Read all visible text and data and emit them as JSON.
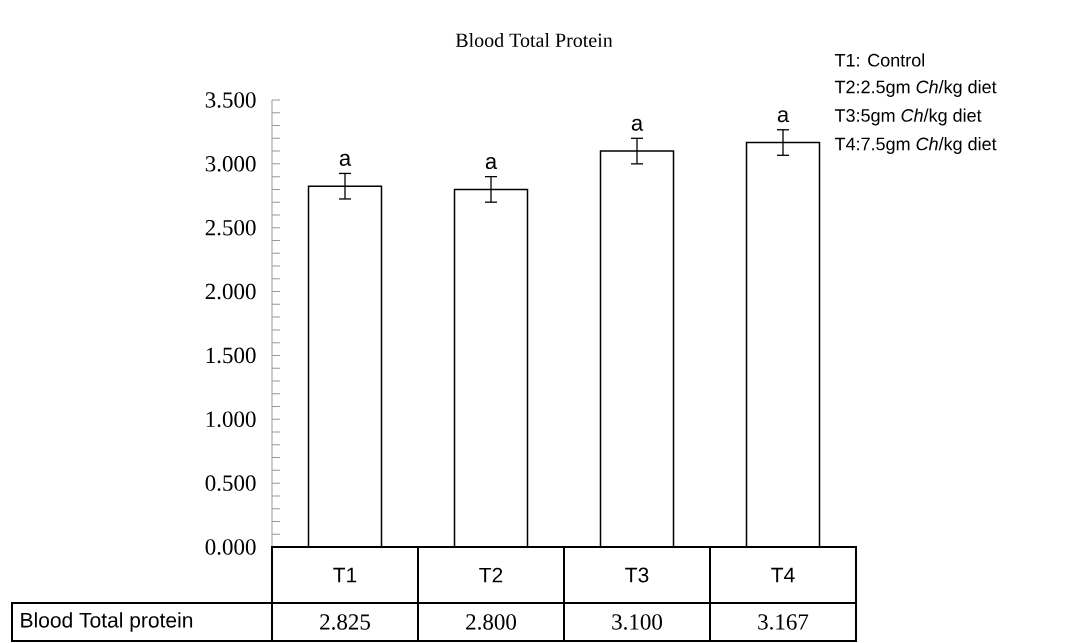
{
  "chart_data": {
    "type": "bar",
    "title": "Blood Total Protein",
    "categories": [
      "T1",
      "T2",
      "T3",
      "T4"
    ],
    "series": [
      {
        "name": "Blood Total protein",
        "color": "#ffffff",
        "values": [
          2.825,
          2.8,
          3.1,
          3.167
        ],
        "errors": [
          0.1,
          0.1,
          0.1,
          0.1
        ],
        "value_labels": [
          "2.825",
          "2.800",
          "3.100",
          "3.167"
        ]
      }
    ],
    "ylim": [
      0,
      3.5
    ],
    "yticks": [
      {
        "value": 0,
        "label": "0.000"
      },
      {
        "value": 0.5,
        "label": "0.500"
      },
      {
        "value": 1,
        "label": "1.000"
      },
      {
        "value": 1.5,
        "label": "1.500"
      },
      {
        "value": 2,
        "label": "2.000"
      },
      {
        "value": 2.5,
        "label": "2.500"
      },
      {
        "value": 3,
        "label": "3.000"
      },
      {
        "value": 3.5,
        "label": "3.500"
      }
    ],
    "annotations": [
      "a",
      "a",
      "a",
      "a",
      "T1: Control",
      "T2:2.5gm *Ch*/kg diet",
      "T3:5gm *Ch*/kg diet",
      "T4:7.5gm *Ch*/kg diet"
    ]
  }
}
